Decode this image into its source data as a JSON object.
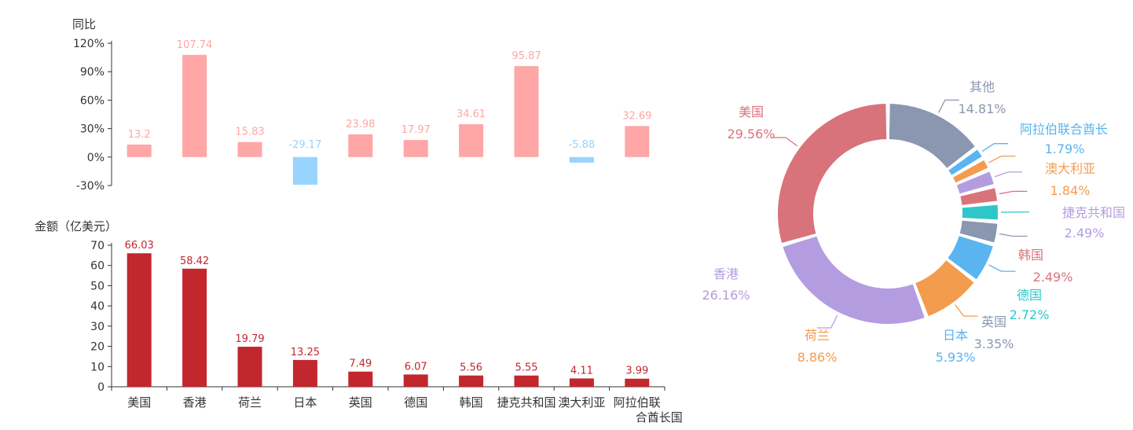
{
  "chart_data": [
    {
      "type": "bar",
      "ylabel": "同比",
      "categories": [
        "美国",
        "香港",
        "荷兰",
        "日本",
        "英国",
        "德国",
        "韩国",
        "捷克共和国",
        "澳大利亚",
        "阿拉伯联合酋长国"
      ],
      "values": [
        13.2,
        107.74,
        15.83,
        -29.17,
        23.98,
        17.97,
        34.61,
        95.87,
        -5.88,
        32.69
      ],
      "value_labels": [
        "13.2",
        "107.74",
        "15.83",
        "-29.17",
        "23.98",
        "17.97",
        "34.61",
        "95.87",
        "-5.88",
        "32.69"
      ],
      "ylim": [
        -30,
        120
      ],
      "yticks": [
        "120%",
        "90%",
        "60%",
        "30%",
        "0%",
        "-30%"
      ],
      "colors": {
        "positive": "#ffa6a6",
        "negative": "#99d3ff"
      }
    },
    {
      "type": "bar",
      "ylabel": "金额（亿美元）",
      "categories": [
        "美国",
        "香港",
        "荷兰",
        "日本",
        "英国",
        "德国",
        "韩国",
        "捷克共和国",
        "澳大利亚",
        "阿拉伯联合酋长国"
      ],
      "xtick_labels": [
        "美国",
        "香港",
        "荷兰",
        "日本",
        "英国",
        "德国",
        "韩国",
        "捷克共和国",
        "澳大利亚",
        "阿拉伯联\n合酋长国"
      ],
      "values": [
        66.03,
        58.42,
        19.79,
        13.25,
        7.49,
        6.07,
        5.56,
        5.55,
        4.11,
        3.99
      ],
      "value_labels": [
        "66.03",
        "58.42",
        "19.79",
        "13.25",
        "7.49",
        "6.07",
        "5.56",
        "5.55",
        "4.11",
        "3.99"
      ],
      "ylim": [
        0,
        70
      ],
      "yticks": [
        "70",
        "60",
        "50",
        "40",
        "30",
        "20",
        "10",
        "0"
      ],
      "colors": {
        "bar": "#c1272d",
        "label": "#c1272d"
      }
    },
    {
      "type": "pie",
      "subtype": "donut",
      "slices": [
        {
          "label": "其他",
          "label_display": "其他",
          "value": 14.81,
          "pct": "14.81%",
          "color": "#8b97b1"
        },
        {
          "label": "阿拉伯联合酋长国",
          "label_display": "阿拉伯联合酋长",
          "value": 1.79,
          "pct": "1.79%",
          "color": "#59b4f0"
        },
        {
          "label": "澳大利亚",
          "label_display": "澳大利亚",
          "value": 1.84,
          "pct": "1.84%",
          "color": "#f39c4d"
        },
        {
          "label": "捷克共和国",
          "label_display": "捷克共和国",
          "value": 2.49,
          "pct": "2.49%",
          "color": "#b39de0"
        },
        {
          "label": "韩国",
          "label_display": "韩国",
          "value": 2.49,
          "pct": "2.49%",
          "color": "#d9737b"
        },
        {
          "label": "德国",
          "label_display": "德国",
          "value": 2.72,
          "pct": "2.72%",
          "color": "#2ec7c9"
        },
        {
          "label": "英国",
          "label_display": "英国",
          "value": 3.35,
          "pct": "3.35%",
          "color": "#8b97b1"
        },
        {
          "label": "日本",
          "label_display": "日本",
          "value": 5.93,
          "pct": "5.93%",
          "color": "#59b4f0"
        },
        {
          "label": "荷兰",
          "label_display": "荷兰",
          "value": 8.86,
          "pct": "8.86%",
          "color": "#f39c4d"
        },
        {
          "label": "香港",
          "label_display": "香港",
          "value": 26.16,
          "pct": "26.16%",
          "color": "#b39de0"
        },
        {
          "label": "美国",
          "label_display": "美国",
          "value": 29.56,
          "pct": "29.56%",
          "color": "#d9737b"
        }
      ]
    }
  ]
}
